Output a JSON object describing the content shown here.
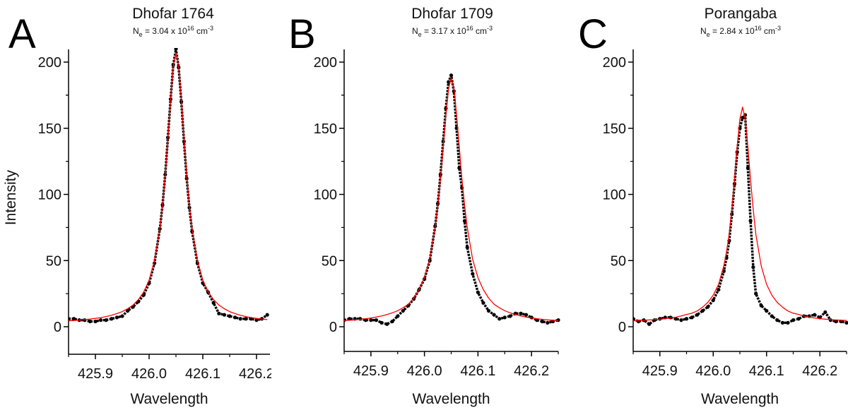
{
  "chart_data": [
    {
      "type": "scatter",
      "panel_letter": "A",
      "title": "Dhofar 1764",
      "ne": {
        "symbol": "N",
        "sub": "e",
        "text": " = 3.04 x 10",
        "exp": "16",
        "unit": " cm",
        "unit_exp": "-3"
      },
      "xlabel": "Wavelength",
      "ylabel": "Intensity",
      "xlim": [
        425.85,
        426.225
      ],
      "ylim": [
        -20,
        210
      ],
      "xticks": [
        "425.9",
        "426.0",
        "426.1",
        "426.2"
      ],
      "yticks": [
        "0",
        "50",
        "100",
        "150",
        "200"
      ],
      "grid": false,
      "colors": {
        "measured": "#000000",
        "fit": "#ff0000"
      },
      "x": [
        425.85,
        425.86,
        425.87,
        425.88,
        425.89,
        425.9,
        425.91,
        425.92,
        425.93,
        425.94,
        425.95,
        425.96,
        425.97,
        425.98,
        425.99,
        426.0,
        426.01,
        426.02,
        426.025,
        426.03,
        426.035,
        426.04,
        426.045,
        426.05,
        426.055,
        426.06,
        426.065,
        426.07,
        426.075,
        426.08,
        426.09,
        426.1,
        426.11,
        426.12,
        426.13,
        426.14,
        426.15,
        426.16,
        426.17,
        426.18,
        426.19,
        426.2,
        426.21,
        426.22
      ],
      "series": [
        {
          "kind": "measured",
          "values": [
            6,
            6,
            5,
            5,
            4,
            4,
            5,
            5,
            6,
            7,
            8,
            12,
            15,
            19,
            24,
            33,
            48,
            74,
            92,
            115,
            143,
            172,
            198,
            210,
            196,
            170,
            140,
            112,
            90,
            72,
            48,
            33,
            26,
            18,
            10,
            9,
            8,
            7,
            6,
            6,
            6,
            5,
            6,
            9
          ]
        },
        {
          "kind": "fit",
          "values": [
            4.5,
            4.7,
            5,
            5.4,
            5.8,
            6.3,
            6.9,
            7.7,
            8.7,
            9.9,
            11.4,
            13.6,
            16.4,
            20.5,
            26.3,
            35.2,
            49.6,
            73.7,
            91.5,
            114,
            142,
            172,
            197,
            207,
            197,
            172,
            142,
            114,
            91.5,
            73.7,
            49.6,
            35.2,
            26.3,
            20.5,
            16.4,
            13.6,
            11.4,
            9.9,
            8.7,
            7.7,
            6.9,
            6.3,
            5.8,
            5.4
          ]
        }
      ]
    },
    {
      "type": "scatter",
      "panel_letter": "B",
      "title": "Dhofar 1709",
      "ne": {
        "symbol": "N",
        "sub": "e",
        "text": " = 3.17 x 10",
        "exp": "16",
        "unit": " cm",
        "unit_exp": "-3"
      },
      "xlabel": "Wavelength",
      "ylabel": "",
      "xlim": [
        425.85,
        426.25
      ],
      "ylim": [
        -20,
        210
      ],
      "xticks": [
        "425.9",
        "426.0",
        "426.1",
        "426.2"
      ],
      "yticks": [
        "0",
        "50",
        "100",
        "150",
        "200"
      ],
      "grid": false,
      "colors": {
        "measured": "#000000",
        "fit": "#ff0000"
      },
      "x": [
        425.85,
        425.86,
        425.87,
        425.88,
        425.89,
        425.9,
        425.91,
        425.92,
        425.93,
        425.94,
        425.95,
        425.96,
        425.97,
        425.98,
        425.99,
        426.0,
        426.01,
        426.02,
        426.025,
        426.03,
        426.035,
        426.04,
        426.045,
        426.05,
        426.055,
        426.06,
        426.065,
        426.07,
        426.075,
        426.08,
        426.09,
        426.1,
        426.11,
        426.12,
        426.13,
        426.14,
        426.15,
        426.16,
        426.17,
        426.18,
        426.19,
        426.2,
        426.21,
        426.22,
        426.23,
        426.24,
        426.25
      ],
      "series": [
        {
          "kind": "measured",
          "values": [
            5,
            6,
            6,
            6,
            5,
            5,
            5,
            3,
            2,
            4,
            8,
            12,
            16,
            21,
            28,
            36,
            50,
            76,
            93,
            115,
            140,
            165,
            185,
            190,
            178,
            150,
            120,
            105,
            80,
            60,
            40,
            26,
            18,
            12,
            9,
            6,
            7,
            8,
            10,
            10,
            9,
            7,
            5,
            4,
            3,
            4,
            5
          ]
        },
        {
          "kind": "fit",
          "values": [
            4.6,
            4.9,
            5.2,
            5.6,
            6.1,
            6.6,
            7.3,
            8.1,
            9.2,
            10.5,
            12.1,
            14.3,
            17,
            21.6,
            28,
            37,
            51,
            75,
            92,
            112,
            136,
            160,
            180,
            188,
            180,
            160,
            136,
            112,
            92,
            75,
            51,
            37,
            28,
            21.6,
            17,
            14.3,
            12.1,
            10.5,
            9.2,
            8.1,
            7.3,
            6.6,
            6.1,
            5.6,
            5.2,
            4.9,
            4.6
          ]
        }
      ]
    },
    {
      "type": "scatter",
      "panel_letter": "C",
      "title": "Porangaba",
      "ne": {
        "symbol": "N",
        "sub": "e",
        "text": " = 2.84 x 10",
        "exp": "16",
        "unit": " cm",
        "unit_exp": "-3"
      },
      "xlabel": "Wavelength",
      "ylabel": "",
      "xlim": [
        425.85,
        426.25
      ],
      "ylim": [
        -20,
        210
      ],
      "xticks": [
        "425.9",
        "426.0",
        "426.1",
        "426.2"
      ],
      "yticks": [
        "0",
        "50",
        "100",
        "150",
        "200"
      ],
      "grid": false,
      "colors": {
        "measured": "#000000",
        "fit": "#ff0000"
      },
      "x": [
        425.85,
        425.86,
        425.87,
        425.88,
        425.89,
        425.9,
        425.91,
        425.92,
        425.93,
        425.94,
        425.95,
        425.96,
        425.97,
        425.98,
        425.99,
        426.0,
        426.01,
        426.02,
        426.025,
        426.03,
        426.035,
        426.04,
        426.045,
        426.05,
        426.055,
        426.06,
        426.065,
        426.07,
        426.075,
        426.08,
        426.09,
        426.1,
        426.11,
        426.12,
        426.13,
        426.14,
        426.15,
        426.16,
        426.17,
        426.18,
        426.19,
        426.2,
        426.21,
        426.22,
        426.23,
        426.24,
        426.25
      ],
      "series": [
        {
          "kind": "measured",
          "values": [
            6,
            4,
            5,
            2,
            5,
            6,
            7,
            7,
            6,
            5,
            6,
            7,
            9,
            12,
            15,
            20,
            28,
            42,
            52,
            65,
            85,
            108,
            132,
            150,
            158,
            160,
            120,
            80,
            45,
            25,
            16,
            12,
            8,
            5,
            3,
            3,
            5,
            6,
            8,
            8,
            9,
            7,
            11,
            5,
            4,
            4,
            3
          ]
        },
        {
          "kind": "fit",
          "values": [
            4.5,
            4.7,
            4.9,
            5.1,
            5.4,
            5.7,
            6.1,
            6.6,
            7.2,
            8.1,
            9.3,
            10.2,
            11.9,
            14.8,
            18.4,
            23.8,
            32,
            46,
            56.6,
            70,
            88.5,
            111,
            136,
            157,
            166,
            157,
            136,
            111,
            88.5,
            70,
            46,
            32,
            23.8,
            18.4,
            14.8,
            11.9,
            10.2,
            9.3,
            8.1,
            7.2,
            6.6,
            6.1,
            5.7,
            5.4,
            5.1,
            4.9,
            4.7
          ]
        }
      ]
    }
  ]
}
